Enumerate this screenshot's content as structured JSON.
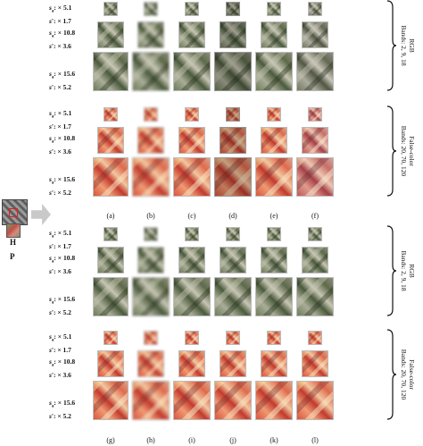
{
  "left_panel": {
    "h_label": "H",
    "p_label": "P"
  },
  "row_labels": [
    {
      "sa": "s",
      "sa_sub": "a",
      "sa_val": ": × 5.1",
      "sp": "s′",
      "sp_val": ": × 1.7"
    },
    {
      "sa": "s",
      "sa_sub": "a",
      "sa_val": ": × 10.8",
      "sp": "s′",
      "sp_val": ": × 3.6"
    },
    {
      "sa": "s",
      "sa_sub": "a",
      "sa_val": ": × 15.6",
      "sp": "s′",
      "sp_val": ": × 5.2"
    }
  ],
  "bands": {
    "rgb": {
      "title": "RGB",
      "line2": "Bands: 2, 9, 18"
    },
    "fc": {
      "title": "False-color",
      "line2": "Bands: 20, 70, 120"
    }
  },
  "columns_top": [
    "(a)",
    "(b)",
    "(c)",
    "(d)",
    "(e)",
    "(f)"
  ],
  "columns_bottom": [
    "(g)",
    "(h)",
    "(i)",
    "(j)",
    "(k)",
    "(l)"
  ]
}
